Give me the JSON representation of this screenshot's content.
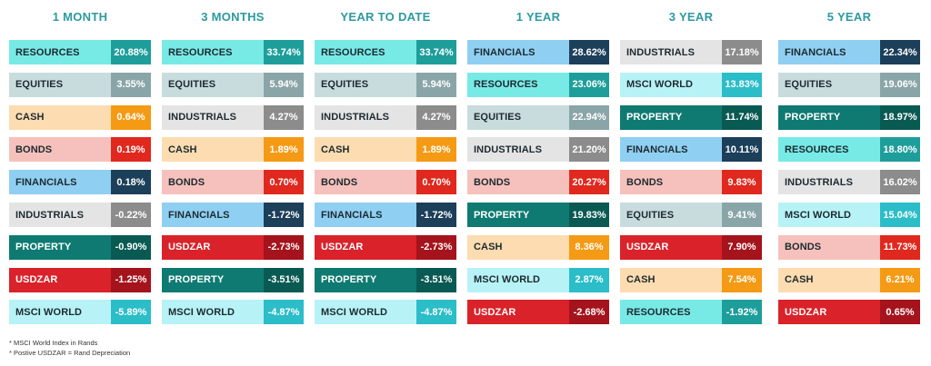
{
  "chart_data": {
    "type": "table",
    "periods": [
      {
        "title": "1 MONTH",
        "rows": [
          {
            "asset": "RESOURCES",
            "value": "20.88%"
          },
          {
            "asset": "EQUITIES",
            "value": "3.55%"
          },
          {
            "asset": "CASH",
            "value": "0.64%"
          },
          {
            "asset": "BONDS",
            "value": "0.19%"
          },
          {
            "asset": "FINANCIALS",
            "value": "0.18%"
          },
          {
            "asset": "INDUSTRIALS",
            "value": "-0.22%"
          },
          {
            "asset": "PROPERTY",
            "value": "-0.90%"
          },
          {
            "asset": "USDZAR",
            "value": "-1.25%"
          },
          {
            "asset": "MSCI WORLD",
            "value": "-5.89%"
          }
        ]
      },
      {
        "title": "3 MONTHS",
        "rows": [
          {
            "asset": "RESOURCES",
            "value": "33.74%"
          },
          {
            "asset": "EQUITIES",
            "value": "5.94%"
          },
          {
            "asset": "INDUSTRIALS",
            "value": "4.27%"
          },
          {
            "asset": "CASH",
            "value": "1.89%"
          },
          {
            "asset": "BONDS",
            "value": "0.70%"
          },
          {
            "asset": "FINANCIALS",
            "value": "-1.72%"
          },
          {
            "asset": "USDZAR",
            "value": "-2.73%"
          },
          {
            "asset": "PROPERTY",
            "value": "-3.51%"
          },
          {
            "asset": "MSCI WORLD",
            "value": "-4.87%"
          }
        ]
      },
      {
        "title": "YEAR TO DATE",
        "rows": [
          {
            "asset": "RESOURCES",
            "value": "33.74%"
          },
          {
            "asset": "EQUITIES",
            "value": "5.94%"
          },
          {
            "asset": "INDUSTRIALS",
            "value": "4.27%"
          },
          {
            "asset": "CASH",
            "value": "1.89%"
          },
          {
            "asset": "BONDS",
            "value": "0.70%"
          },
          {
            "asset": "FINANCIALS",
            "value": "-1.72%"
          },
          {
            "asset": "USDZAR",
            "value": "-2.73%"
          },
          {
            "asset": "PROPERTY",
            "value": "-3.51%"
          },
          {
            "asset": "MSCI WORLD",
            "value": "-4.87%"
          }
        ]
      },
      {
        "title": "1 YEAR",
        "rows": [
          {
            "asset": "FINANCIALS",
            "value": "28.62%"
          },
          {
            "asset": "RESOURCES",
            "value": "23.06%"
          },
          {
            "asset": "EQUITIES",
            "value": "22.94%"
          },
          {
            "asset": "INDUSTRIALS",
            "value": "21.20%"
          },
          {
            "asset": "BONDS",
            "value": "20.27%"
          },
          {
            "asset": "PROPERTY",
            "value": "19.83%"
          },
          {
            "asset": "CASH",
            "value": "8.36%"
          },
          {
            "asset": "MSCI WORLD",
            "value": "2.87%"
          },
          {
            "asset": "USDZAR",
            "value": "-2.68%"
          }
        ]
      },
      {
        "title": "3 YEAR",
        "rows": [
          {
            "asset": "INDUSTRIALS",
            "value": "17.18%"
          },
          {
            "asset": "MSCI WORLD",
            "value": "13.83%"
          },
          {
            "asset": "PROPERTY",
            "value": "11.74%"
          },
          {
            "asset": "FINANCIALS",
            "value": "10.11%"
          },
          {
            "asset": "BONDS",
            "value": "9.83%"
          },
          {
            "asset": "EQUITIES",
            "value": "9.41%"
          },
          {
            "asset": "USDZAR",
            "value": "7.90%"
          },
          {
            "asset": "CASH",
            "value": "7.54%"
          },
          {
            "asset": "RESOURCES",
            "value": "-1.92%"
          }
        ]
      },
      {
        "title": "5 YEAR",
        "rows": [
          {
            "asset": "FINANCIALS",
            "value": "22.34%"
          },
          {
            "asset": "EQUITIES",
            "value": "19.06%"
          },
          {
            "asset": "PROPERTY",
            "value": "18.97%"
          },
          {
            "asset": "RESOURCES",
            "value": "18.80%"
          },
          {
            "asset": "INDUSTRIALS",
            "value": "16.02%"
          },
          {
            "asset": "MSCI WORLD",
            "value": "15.04%"
          },
          {
            "asset": "BONDS",
            "value": "11.73%"
          },
          {
            "asset": "CASH",
            "value": "6.21%"
          },
          {
            "asset": "USDZAR",
            "value": "0.65%"
          }
        ]
      }
    ],
    "asset_colors": {
      "RESOURCES": {
        "label_bg": "#78eae6",
        "value_bg": "#1e9e9b",
        "label_text": "#1d2a30",
        "value_text": "#ffffff"
      },
      "EQUITIES": {
        "label_bg": "#c8dcdd",
        "value_bg": "#8aa5a8",
        "label_text": "#1d2a30",
        "value_text": "#ffffff"
      },
      "CASH": {
        "label_bg": "#fcdcb0",
        "value_bg": "#f59a14",
        "label_text": "#1d2a30",
        "value_text": "#ffffff"
      },
      "BONDS": {
        "label_bg": "#f6c1bc",
        "value_bg": "#e0281e",
        "label_text": "#1d2a30",
        "value_text": "#ffffff"
      },
      "FINANCIALS": {
        "label_bg": "#8fcff2",
        "value_bg": "#1c3f5a",
        "label_text": "#1d2a30",
        "value_text": "#ffffff"
      },
      "INDUSTRIALS": {
        "label_bg": "#e4e4e4",
        "value_bg": "#8c8c8c",
        "label_text": "#1d2a30",
        "value_text": "#ffffff"
      },
      "PROPERTY": {
        "label_bg": "#0f7a72",
        "value_bg": "#0a5a54",
        "label_text": "#ffffff",
        "value_text": "#ffffff"
      },
      "USDZAR": {
        "label_bg": "#d9222a",
        "value_bg": "#a5131c",
        "label_text": "#ffffff",
        "value_text": "#ffffff"
      },
      "MSCI WORLD": {
        "label_bg": "#b7f3f6",
        "value_bg": "#2bbdc8",
        "label_text": "#1d2a30",
        "value_text": "#ffffff"
      }
    },
    "header_color": "#2b9aa0"
  },
  "notes": [
    "* MSCI World Index in  Rands",
    "* Postive USDZAR = Rand Depreciation"
  ]
}
